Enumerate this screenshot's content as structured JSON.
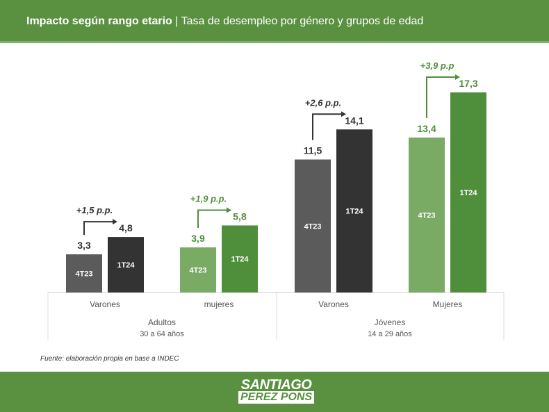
{
  "header": {
    "title_bold": "Impacto según rango etario",
    "separator": "|",
    "title_rest": "Tasa de desempleo por género y grupos de edad"
  },
  "source": "Fuente: elaboración propia en base a INDEC",
  "logo": {
    "line1": "SANTIAGO",
    "line2": "PEREZ PONS"
  },
  "colors": {
    "header": "#5a9140",
    "grey_4t23": "#5b5b5b",
    "grey_1t24": "#333333",
    "green_4t23": "#7aab64",
    "green_1t24": "#4f8f3c"
  },
  "chart_data": {
    "type": "bar",
    "title": "Tasa de desempleo por género y grupos de edad",
    "ylim": [
      0,
      17.3
    ],
    "series_names": [
      "4T23",
      "1T24"
    ],
    "groups": [
      {
        "name": "Adultos",
        "sub": "30 a 64 años",
        "categories": [
          {
            "label": "Varones",
            "values": [
              3.3,
              4.8
            ],
            "value_labels": [
              "3,3",
              "4,8"
            ],
            "change": "+1,5 p.p.",
            "palette": "grey"
          },
          {
            "label": "mujeres",
            "values": [
              3.9,
              5.8
            ],
            "value_labels": [
              "3,9",
              "5,8"
            ],
            "change": "+1,9 p.p.",
            "palette": "green"
          }
        ]
      },
      {
        "name": "Jóvenes",
        "sub": "14 a 29 años",
        "categories": [
          {
            "label": "Varones",
            "values": [
              11.5,
              14.1
            ],
            "value_labels": [
              "11,5",
              "14,1"
            ],
            "change": "+2,6 p.p.",
            "palette": "grey"
          },
          {
            "label": "Mujeres",
            "values": [
              13.4,
              17.3
            ],
            "value_labels": [
              "13,4",
              "17,3"
            ],
            "change": "+3,9 p.p",
            "palette": "green"
          }
        ]
      }
    ]
  }
}
